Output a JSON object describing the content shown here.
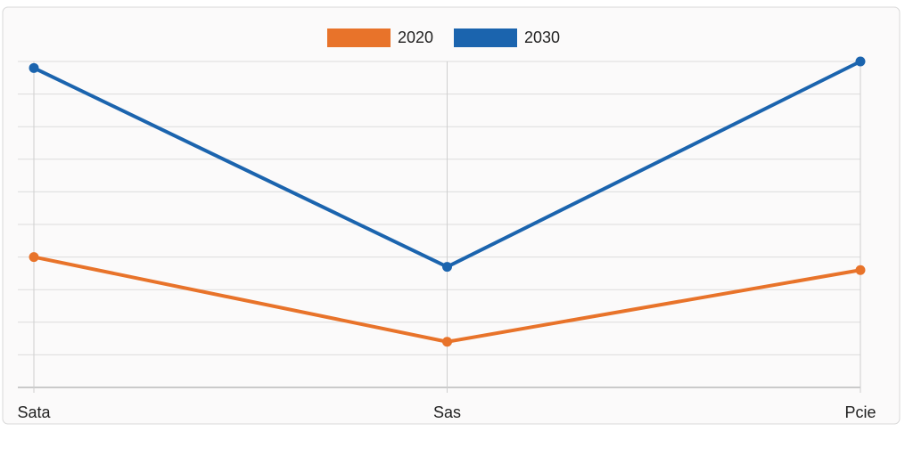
{
  "chart_data": {
    "type": "line",
    "categories": [
      "Sata",
      "Sas",
      "Pcie"
    ],
    "series": [
      {
        "name": "2020",
        "color": "#e8732a",
        "values": [
          4.0,
          1.4,
          3.6
        ]
      },
      {
        "name": "2030",
        "color": "#1b64ae",
        "values": [
          9.8,
          3.7,
          10
        ]
      }
    ],
    "ylim": [
      0,
      10
    ],
    "yticks": [
      0,
      1,
      2,
      3,
      4,
      5,
      6,
      7,
      8,
      9,
      10
    ],
    "grid": true,
    "legend": "top"
  }
}
